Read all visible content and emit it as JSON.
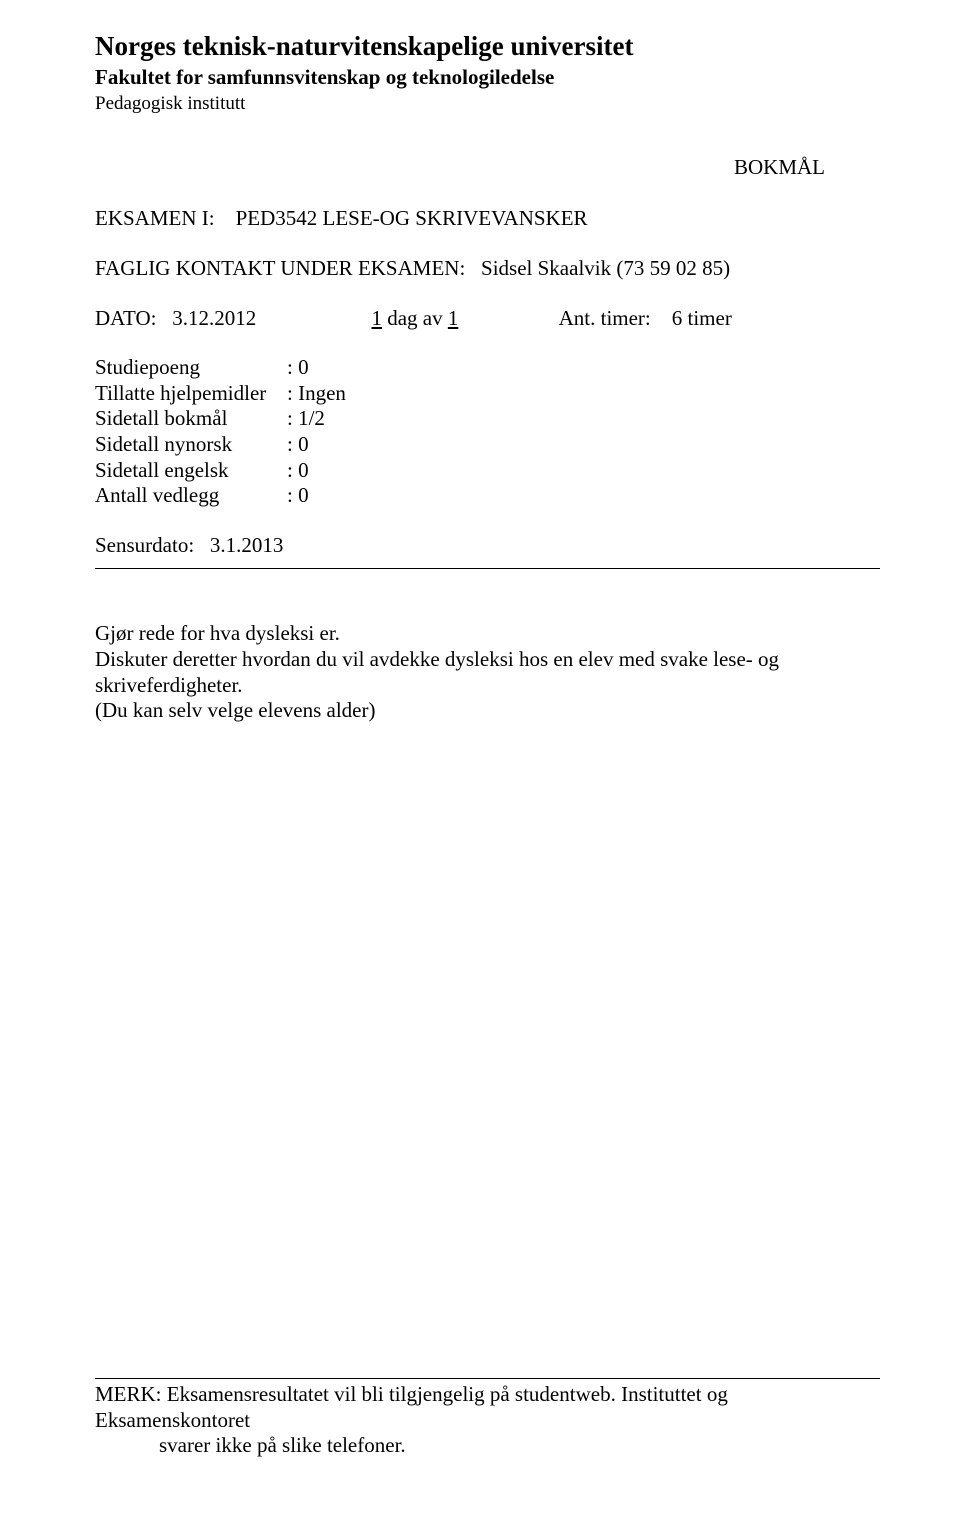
{
  "header": {
    "university": "Norges teknisk-naturvitenskapelige universitet",
    "faculty": "Fakultet for samfunnsvitenskap og teknologiledelse",
    "institute": "Pedagogisk institutt"
  },
  "language_tag": "BOKMÅL",
  "exam": {
    "label": "EKSAMEN I:",
    "code_title": "PED3542 LESE-OG SKRIVEVANSKER"
  },
  "contact": {
    "label": "FAGLIG KONTAKT UNDER EKSAMEN:",
    "person": "Sidsel Skaalvik (73 59 02 85)"
  },
  "date": {
    "label": "DATO:",
    "value": "3.12.2012",
    "day_of_prefix_underlined": "1",
    "day_of_mid": " dag av ",
    "day_of_suffix_underlined": "1",
    "ant_label": "Ant. timer:",
    "ant_value": "6 timer"
  },
  "meta": {
    "rows": [
      {
        "label": "Studiepoeng",
        "value": ": 0"
      },
      {
        "label": "Tillatte hjelpemidler",
        "value": ": Ingen"
      },
      {
        "label": "Sidetall bokmål",
        "value": ": 1/2"
      },
      {
        "label": "Sidetall nynorsk",
        "value": ": 0"
      },
      {
        "label": "Sidetall engelsk",
        "value": ": 0"
      },
      {
        "label": "Antall vedlegg",
        "value": ": 0"
      }
    ]
  },
  "sensur": {
    "label": "Sensurdato:",
    "value": "3.1.2013"
  },
  "task": {
    "line1": "Gjør rede for hva dysleksi er.",
    "line2": "Diskuter deretter hvordan du vil avdekke dysleksi hos en elev med svake lese- og skriveferdigheter.",
    "line3": "(Du kan selv velge elevens alder)"
  },
  "footer": {
    "line1": "MERK: Eksamensresultatet vil bli tilgjengelig på studentweb. Instituttet og Eksamenskontoret",
    "line2": "svarer ikke på slike telefoner."
  }
}
